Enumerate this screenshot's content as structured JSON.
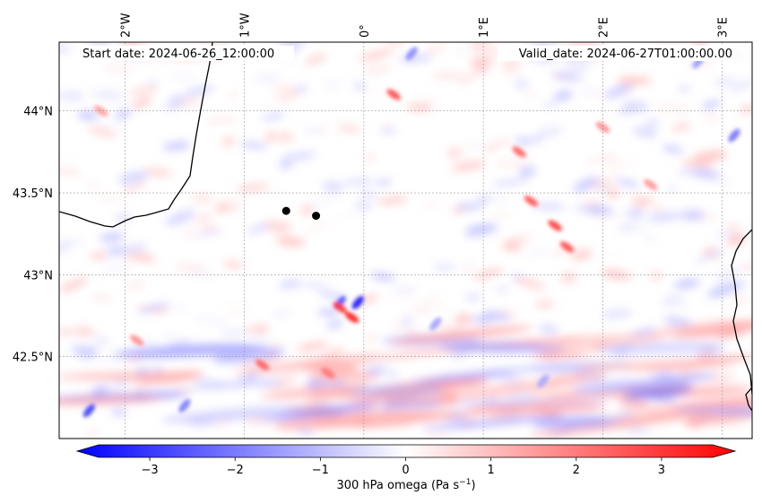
{
  "map": {
    "start_label": "Start date: 2024-06-26_12:00:00",
    "valid_label": "Valid_date: 2024-06-27T01:00:00.00",
    "lon_ticks": [
      {
        "lon": -2,
        "label": "2°W"
      },
      {
        "lon": -1,
        "label": "1°W"
      },
      {
        "lon": 0,
        "label": "0°"
      },
      {
        "lon": 1,
        "label": "1°E"
      },
      {
        "lon": 2,
        "label": "2°E"
      },
      {
        "lon": 3,
        "label": "3°E"
      }
    ],
    "lat_ticks": [
      {
        "lat": 44.0,
        "label": "44°N"
      },
      {
        "lat": 43.5,
        "label": "43.5°N"
      },
      {
        "lat": 43.0,
        "label": "43°N"
      },
      {
        "lat": 42.5,
        "label": "42.5°N"
      }
    ],
    "extent": {
      "lon_min": -2.55,
      "lon_max": 3.25,
      "lat_min": 42.0,
      "lat_max": 44.42
    },
    "points": [
      {
        "lon": -0.65,
        "lat": 43.39
      },
      {
        "lon": -0.4,
        "lat": 43.36
      }
    ],
    "field": {
      "variable": "300 hPa omega",
      "colormap": "bwr",
      "vmin": -3.6,
      "vmax": 3.6,
      "features": [
        {
          "lon": -0.05,
          "lat": 42.83,
          "value": -3.2
        },
        {
          "lon": -0.1,
          "lat": 42.74,
          "value": 3.1
        },
        {
          "lon": -0.2,
          "lat": 42.83,
          "value": -2.4
        },
        {
          "lon": -0.2,
          "lat": 42.8,
          "value": 2.8
        },
        {
          "lon": 0.25,
          "lat": 44.1,
          "value": 2.4
        },
        {
          "lon": 1.3,
          "lat": 43.75,
          "value": 2.1
        },
        {
          "lon": 1.4,
          "lat": 43.45,
          "value": 2.3
        },
        {
          "lon": 1.6,
          "lat": 43.3,
          "value": 2.6
        },
        {
          "lon": 1.7,
          "lat": 43.17,
          "value": 2.4
        },
        {
          "lon": -0.85,
          "lat": 42.45,
          "value": 2.2
        },
        {
          "lon": -0.3,
          "lat": 42.4,
          "value": 1.9
        },
        {
          "lon": -2.3,
          "lat": 42.17,
          "value": -2.6
        },
        {
          "lon": -1.5,
          "lat": 42.2,
          "value": -1.8
        },
        {
          "lon": 3.1,
          "lat": 43.85,
          "value": -1.9
        },
        {
          "lon": 2.8,
          "lat": 44.3,
          "value": -1.4
        },
        {
          "lon": 0.4,
          "lat": 44.35,
          "value": -1.6
        },
        {
          "lon": 0.6,
          "lat": 42.7,
          "value": -1.3
        },
        {
          "lon": 1.5,
          "lat": 42.35,
          "value": -1.2
        },
        {
          "lon": -1.9,
          "lat": 42.6,
          "value": 1.5
        },
        {
          "lon": -2.2,
          "lat": 44.0,
          "value": 1.3
        },
        {
          "lon": 2.0,
          "lat": 43.9,
          "value": 1.5
        },
        {
          "lon": 2.4,
          "lat": 43.55,
          "value": 1.4
        }
      ]
    }
  },
  "colorbar": {
    "ticks": [
      -3,
      -2,
      -1,
      0,
      1,
      2,
      3
    ],
    "tick_labels": [
      "−3",
      "−2",
      "−1",
      "0",
      "1",
      "2",
      "3"
    ],
    "label_main": "300 hPa omega (Pa s",
    "label_exp": "−1",
    "label_end": ")"
  }
}
